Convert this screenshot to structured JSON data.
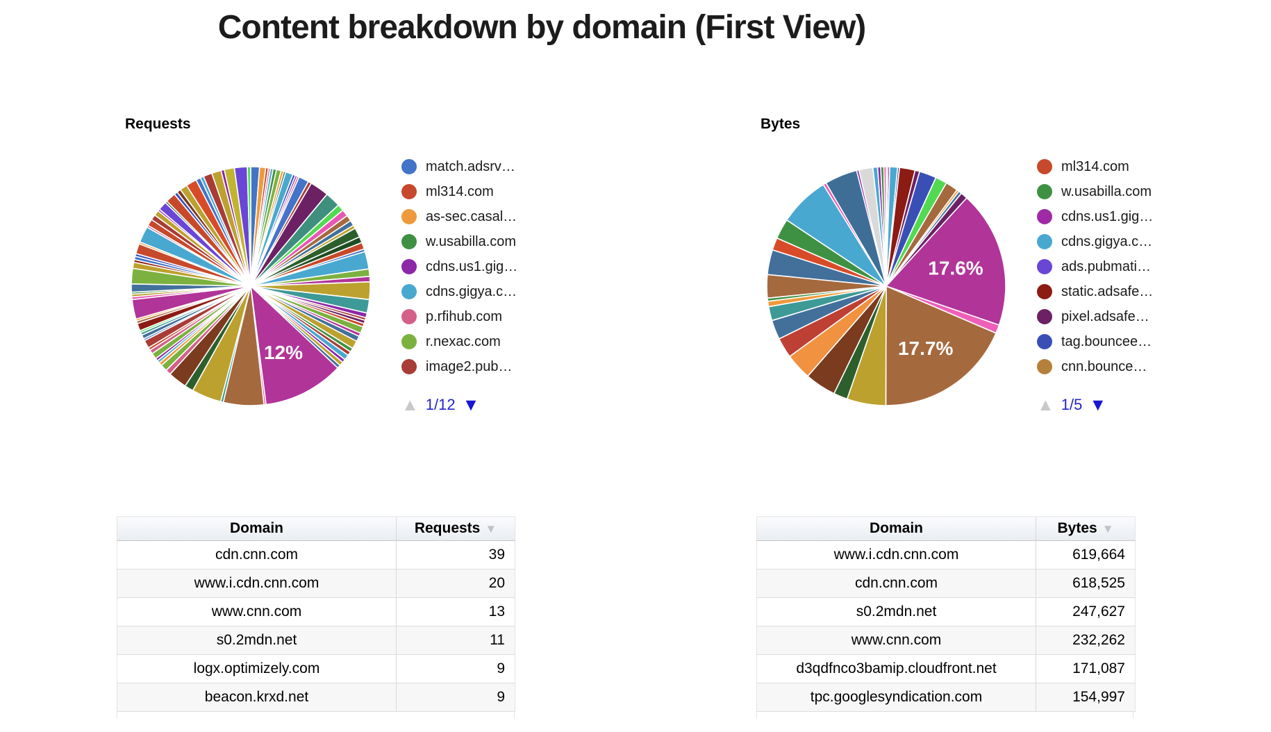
{
  "page": {
    "title": "Content breakdown by domain (First View)"
  },
  "colors": {
    "pagination_text": "#2323CC",
    "pagination_active_arrow": "#1717CF",
    "pagination_disabled_arrow": "#C9C9C9",
    "requests_big_slice": "#B13499",
    "bytes_big_slice_magenta": "#B13499",
    "bytes_big_slice_brown": "#A5693E"
  },
  "chart_data": [
    {
      "type": "pie",
      "title": "Requests",
      "legend_position": "right",
      "legend_page": "1/12",
      "legend": [
        {
          "label": "match.adsrv…",
          "color": "#4374C7"
        },
        {
          "label": "ml314.com",
          "color": "#C7492B"
        },
        {
          "label": "as-sec.casal…",
          "color": "#EE9A3C"
        },
        {
          "label": "w.usabilla.com",
          "color": "#3E9142"
        },
        {
          "label": "cdns.us1.gig…",
          "color": "#8C27A7"
        },
        {
          "label": "cdns.gigya.c…",
          "color": "#49A8D0"
        },
        {
          "label": "p.rfihub.com",
          "color": "#D4608A"
        },
        {
          "label": "r.nexac.com",
          "color": "#7CB13F"
        },
        {
          "label": "image2.pub…",
          "color": "#A83C36"
        }
      ],
      "labeled_values": [
        {
          "label": "12%",
          "value": 12
        }
      ],
      "slices": [
        [
          "#4374C7",
          1.3
        ],
        [
          "#EE9A3C",
          0.9
        ],
        [
          "#C7492B",
          0.4
        ],
        [
          "#D4608A",
          0.3
        ],
        [
          "#49A8D0",
          0.4
        ],
        [
          "#3E9142",
          0.5
        ],
        [
          "#7CB13F",
          0.7
        ],
        [
          "#EE9A3C",
          0.4
        ],
        [
          "#2D5F2D",
          0.3
        ],
        [
          "#49A8D0",
          1.1
        ],
        [
          "#3A50B9",
          0.4
        ],
        [
          "#8C27A7",
          0.3
        ],
        [
          "#D4608A",
          0.3
        ],
        [
          "#4374C7",
          1.5
        ],
        [
          "#A83C36",
          0.5
        ],
        [
          "#6B2163",
          2.8
        ],
        [
          "#3E8F7E",
          2.3
        ],
        [
          "#52D952",
          1.0
        ],
        [
          "#E857B4",
          1.0
        ],
        [
          "#A5693E",
          0.9
        ],
        [
          "#43709B",
          0.8
        ],
        [
          "#BCA12F",
          0.5
        ],
        [
          "#2D5F2D",
          1.4
        ],
        [
          "#1E4D21",
          0.9
        ],
        [
          "#C7492B",
          1.0
        ],
        [
          "#4374C7",
          0.4
        ],
        [
          "#49A8D0",
          2.6
        ],
        [
          "#7CB13F",
          1.1
        ],
        [
          "#B13499",
          0.8
        ],
        [
          "#BCA12F",
          2.6
        ],
        [
          "#3D9A96",
          2.0
        ],
        [
          "#8C27A7",
          0.7
        ],
        [
          "#A83C36",
          0.4
        ],
        [
          "#6B2163",
          0.5
        ],
        [
          "#C7492B",
          0.5
        ],
        [
          "#7CB13F",
          1.0
        ],
        [
          "#B13499",
          0.5
        ],
        [
          "#43709B",
          0.8
        ],
        [
          "#BCA12F",
          1.2
        ],
        [
          "#3E9142",
          0.6
        ],
        [
          "#A83C36",
          0.6
        ],
        [
          "#49A8D0",
          0.8
        ],
        [
          "#8C27A7",
          0.5
        ],
        [
          "#BCA12F",
          0.6
        ],
        [
          "#43709B",
          0.5
        ],
        [
          "#B13499",
          12.0,
          "12%"
        ],
        [
          "#E857B4",
          0.3
        ],
        [
          "#A5693E",
          6.0
        ],
        [
          "#3D9A96",
          0.4
        ],
        [
          "#BCA12F",
          4.4
        ],
        [
          "#2D5F2D",
          1.3
        ],
        [
          "#7B3B1E",
          2.8
        ],
        [
          "#D4608A",
          0.8
        ],
        [
          "#7CB13F",
          1.0
        ],
        [
          "#EE9A3C",
          0.5
        ],
        [
          "#49A8D0",
          0.4
        ],
        [
          "#8C27A7",
          0.4
        ],
        [
          "#7CB13F",
          0.9
        ],
        [
          "#D4608A",
          0.6
        ],
        [
          "#C7492B",
          0.4
        ],
        [
          "#A83C36",
          1.2
        ],
        [
          "#4374C7",
          0.3
        ],
        [
          "#43709B",
          0.6
        ],
        [
          "#3D9A96",
          0.4
        ],
        [
          "#52D952",
          0.3
        ],
        [
          "#8C1B13",
          1.1
        ],
        [
          "#A5693E",
          0.4
        ],
        [
          "#EE9A3C",
          0.3
        ],
        [
          "#B13499",
          2.9
        ],
        [
          "#E857B4",
          0.4
        ],
        [
          "#BCA12F",
          0.4
        ],
        [
          "#3E9142",
          0.3
        ],
        [
          "#43709B",
          1.2
        ],
        [
          "#7CB13F",
          2.3
        ],
        [
          "#BCA12F",
          0.9
        ],
        [
          "#8C1B13",
          0.4
        ],
        [
          "#4374C7",
          0.5
        ],
        [
          "#3A50B9",
          0.4
        ],
        [
          "#C7492B",
          1.5
        ],
        [
          "#EE9A3C",
          0.3
        ],
        [
          "#49A8D0",
          2.4
        ],
        [
          "#D4608A",
          0.3
        ],
        [
          "#C7492B",
          1.0
        ],
        [
          "#A83C36",
          0.8
        ],
        [
          "#BCA12F",
          0.8
        ],
        [
          "#8C27A7",
          0.3
        ],
        [
          "#6A46D6",
          1.3
        ],
        [
          "#2D5F2D",
          0.3
        ],
        [
          "#C7492B",
          1.5
        ],
        [
          "#3A50B9",
          0.5
        ],
        [
          "#7B3B1E",
          0.6
        ],
        [
          "#BCA12F",
          1.1
        ],
        [
          "#D84B28",
          1.6
        ],
        [
          "#4374C7",
          0.7
        ],
        [
          "#49A8D0",
          0.5
        ],
        [
          "#A83C36",
          1.3
        ],
        [
          "#BCA12F",
          1.4
        ],
        [
          "#8C27A7",
          0.5
        ],
        [
          "#C0B52F",
          1.5
        ],
        [
          "#6A46D6",
          1.9
        ],
        [
          "#52D952",
          0.5
        ]
      ]
    },
    {
      "type": "pie",
      "title": "Bytes",
      "legend_position": "right",
      "legend_page": "1/5",
      "legend": [
        {
          "label": "ml314.com",
          "color": "#C7492B"
        },
        {
          "label": "w.usabilla.com",
          "color": "#3E9142"
        },
        {
          "label": "cdns.us1.gig…",
          "color": "#9E2BA5"
        },
        {
          "label": "cdns.gigya.c…",
          "color": "#49A8D0"
        },
        {
          "label": "ads.pubmati…",
          "color": "#6A46D6"
        },
        {
          "label": "static.adsafe…",
          "color": "#8C1B13"
        },
        {
          "label": "pixel.adsafe…",
          "color": "#6B2163"
        },
        {
          "label": "tag.bouncee…",
          "color": "#3A4FB5"
        },
        {
          "label": "cnn.bounce…",
          "color": "#B5803C"
        }
      ],
      "labeled_values": [
        {
          "label": "17.6%",
          "value": 17.6
        },
        {
          "label": "17.7%",
          "value": 17.7
        }
      ],
      "slices": [
        [
          "#3E9142",
          0.2
        ],
        [
          "#B13499",
          0.25
        ],
        [
          "#49A8D0",
          1.0
        ],
        [
          "#3A50B9",
          0.25
        ],
        [
          "#8C1B13",
          2.0
        ],
        [
          "#6B2163",
          0.6
        ],
        [
          "#3A4FB5",
          2.2
        ],
        [
          "#52D952",
          1.5
        ],
        [
          "#A5693E",
          1.6
        ],
        [
          "#EE9A3C",
          0.3
        ],
        [
          "#43709B",
          0.4
        ],
        [
          "#6B2163",
          0.9
        ],
        [
          "#B13499",
          17.6,
          "17.6%"
        ],
        [
          "#EE5FB9",
          1.1
        ],
        [
          "#A5693E",
          17.7,
          "17.7%"
        ],
        [
          "#BCA12F",
          5.0
        ],
        [
          "#2D5F2D",
          1.8
        ],
        [
          "#7B3B1E",
          4.0
        ],
        [
          "#F09240",
          3.4
        ],
        [
          "#BE3F34",
          2.6
        ],
        [
          "#43709B",
          2.5
        ],
        [
          "#3D9A96",
          1.8
        ],
        [
          "#EE9A3C",
          0.7
        ],
        [
          "#3E9142",
          0.4
        ],
        [
          "#A5693E",
          3.0
        ],
        [
          "#43709B",
          3.2
        ],
        [
          "#D84B28",
          1.6
        ],
        [
          "#3E9142",
          2.6
        ],
        [
          "#49A8D0",
          6.5
        ],
        [
          "#E857B4",
          0.4
        ],
        [
          "#3E6E96",
          4.2
        ],
        [
          "#8C27A7",
          0.3
        ],
        [
          "#D9D9D9",
          1.8
        ],
        [
          "#49A8D0",
          0.6
        ],
        [
          "#8C27A7",
          0.4
        ],
        [
          "#3E9142",
          0.4
        ],
        [
          "#E857B4",
          0.3
        ]
      ]
    }
  ],
  "tables": [
    {
      "columns": [
        "Domain",
        "Requests"
      ],
      "sorted_by": "Requests",
      "sort_direction": "desc",
      "rows": [
        [
          "cdn.cnn.com",
          "39"
        ],
        [
          "www.i.cdn.cnn.com",
          "20"
        ],
        [
          "www.cnn.com",
          "13"
        ],
        [
          "s0.2mdn.net",
          "11"
        ],
        [
          "logx.optimizely.com",
          "9"
        ],
        [
          "beacon.krxd.net",
          "9"
        ]
      ]
    },
    {
      "columns": [
        "Domain",
        "Bytes"
      ],
      "sorted_by": "Bytes",
      "sort_direction": "desc",
      "rows": [
        [
          "www.i.cdn.cnn.com",
          "619,664"
        ],
        [
          "cdn.cnn.com",
          "618,525"
        ],
        [
          "s0.2mdn.net",
          "247,627"
        ],
        [
          "www.cnn.com",
          "232,262"
        ],
        [
          "d3qdfnco3bamip.cloudfront.net",
          "171,087"
        ],
        [
          "tpc.googlesyndication.com",
          "154,997"
        ]
      ]
    }
  ],
  "pagination_icons": {
    "up": "▲",
    "down": "▼"
  },
  "sort_icon": "▼"
}
